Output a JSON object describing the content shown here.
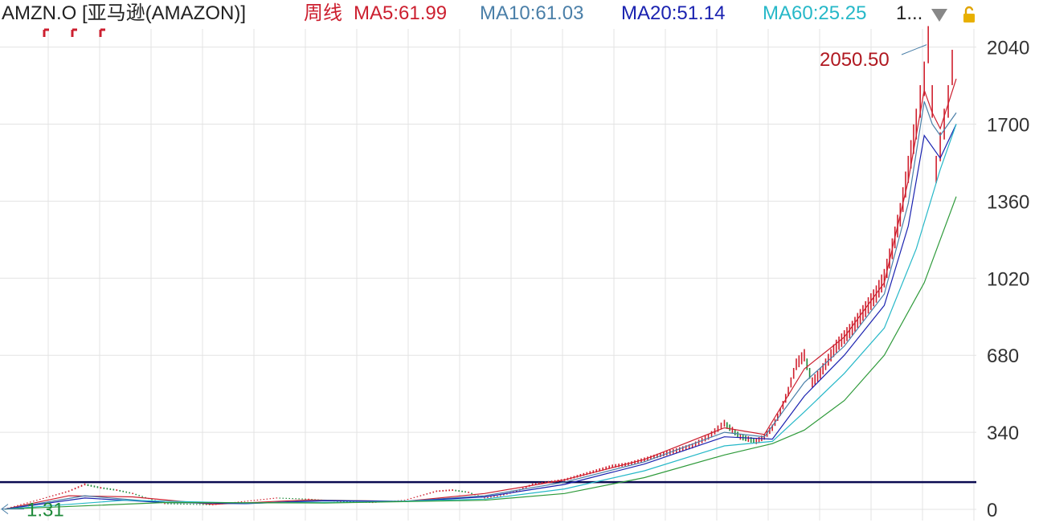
{
  "header": {
    "symbol_label": "AMZN.O [亚马逊(AMAZON)]",
    "period_label": "周线",
    "ma_labels": [
      {
        "text": "MA5:61.99",
        "color": "#cc1f2f"
      },
      {
        "text": "MA10:61.03",
        "color": "#4a7fa8"
      },
      {
        "text": "MA20:51.14",
        "color": "#1a22b0"
      },
      {
        "text": "MA60:25.25",
        "color": "#26b8c8"
      }
    ],
    "more_label": "1...",
    "dropdown_icon": "triangle-down-icon",
    "lock_icon": "lock-icon"
  },
  "colors": {
    "up": "#d0202e",
    "down": "#1e8a3a",
    "ma5": "#cc1f2f",
    "ma10": "#4a7fa8",
    "ma20": "#1a22b0",
    "ma60": "#26b8c8",
    "ma_long": "#2e9a3a",
    "ref_line": "#0a0a50",
    "grid": "#e3e3e3"
  },
  "chart_data": {
    "type": "line",
    "title": "AMZN.O 周线",
    "ylim": [
      0,
      2120
    ],
    "yticks": [
      0,
      340,
      680,
      1020,
      1360,
      1700,
      2040
    ],
    "grid": true,
    "max_label": "2050.50",
    "min_label": "1.31",
    "reference_level": 120,
    "series": [
      {
        "name": "Close",
        "x": [
          0,
          40,
          80,
          100,
          120,
          140,
          160,
          200,
          260,
          300,
          340,
          380,
          420,
          460,
          500,
          540,
          560,
          580,
          600,
          620,
          640,
          660,
          680,
          700,
          720,
          740,
          760,
          780,
          800,
          820,
          840,
          860,
          880,
          900,
          910,
          920,
          930,
          940,
          950,
          960,
          970,
          980,
          990,
          1000,
          1010,
          1020,
          1030,
          1040,
          1050,
          1060,
          1070,
          1080,
          1090,
          1100,
          1110,
          1120,
          1130,
          1140,
          1145,
          1150,
          1155,
          1160,
          1165,
          1170,
          1175,
          1180,
          1185,
          1190
        ],
        "values": [
          1.31,
          40,
          80,
          110,
          95,
          85,
          70,
          25,
          20,
          35,
          50,
          45,
          35,
          30,
          40,
          80,
          85,
          75,
          50,
          60,
          80,
          110,
          120,
          130,
          150,
          170,
          190,
          200,
          220,
          240,
          260,
          280,
          320,
          380,
          350,
          320,
          310,
          300,
          320,
          360,
          430,
          520,
          640,
          680,
          560,
          600,
          660,
          720,
          760,
          800,
          850,
          900,
          950,
          1020,
          1150,
          1300,
          1500,
          1700,
          1800,
          1900,
          2050.5,
          1800,
          1500,
          1600,
          1700,
          1800,
          1950,
          1850
        ]
      },
      {
        "name": "MA5",
        "x": [
          0,
          80,
          160,
          260,
          380,
          500,
          600,
          700,
          800,
          900,
          950,
          1000,
          1050,
          1100,
          1130,
          1150,
          1160,
          1170,
          1190
        ],
        "values": [
          1,
          60,
          55,
          22,
          42,
          35,
          70,
          130,
          220,
          360,
          330,
          620,
          760,
          1000,
          1450,
          1850,
          1750,
          1680,
          1900
        ]
      },
      {
        "name": "MA10",
        "x": [
          0,
          100,
          200,
          300,
          400,
          500,
          600,
          700,
          800,
          900,
          950,
          1000,
          1050,
          1100,
          1130,
          1150,
          1160,
          1170,
          1190
        ],
        "values": [
          1,
          60,
          30,
          25,
          40,
          35,
          60,
          120,
          210,
          340,
          320,
          560,
          720,
          950,
          1350,
          1800,
          1700,
          1650,
          1750
        ]
      },
      {
        "name": "MA20",
        "x": [
          0,
          100,
          200,
          300,
          400,
          500,
          600,
          700,
          800,
          900,
          960,
          1000,
          1050,
          1100,
          1130,
          1150,
          1170,
          1190
        ],
        "values": [
          1,
          50,
          30,
          25,
          38,
          35,
          55,
          110,
          200,
          320,
          310,
          500,
          680,
          900,
          1250,
          1650,
          1550,
          1700
        ]
      },
      {
        "name": "MA60",
        "x": [
          0,
          150,
          300,
          450,
          600,
          700,
          800,
          900,
          960,
          1000,
          1050,
          1100,
          1140,
          1170,
          1190
        ],
        "values": [
          1,
          40,
          28,
          32,
          45,
          90,
          170,
          280,
          300,
          430,
          600,
          800,
          1150,
          1500,
          1700
        ]
      },
      {
        "name": "MA120",
        "x": [
          0,
          200,
          400,
          600,
          700,
          800,
          900,
          960,
          1000,
          1050,
          1100,
          1150,
          1190
        ],
        "values": [
          1,
          30,
          28,
          40,
          70,
          140,
          240,
          290,
          350,
          480,
          680,
          1000,
          1380
        ]
      }
    ]
  }
}
